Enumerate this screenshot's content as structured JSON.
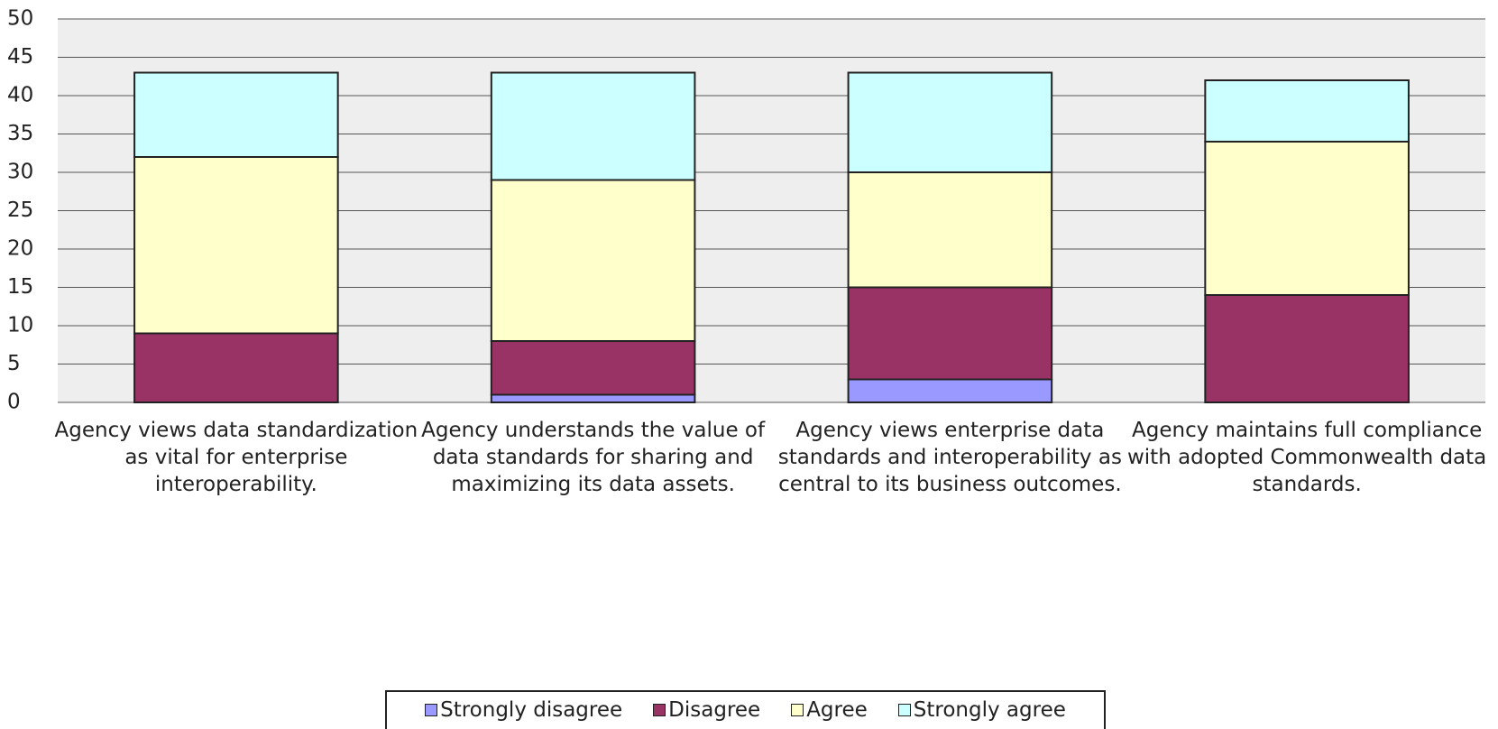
{
  "chart_data": {
    "type": "stacked_bar",
    "categories": [
      "Agency views data standardization as vital for enterprise interoperability.",
      "Agency understands the value of data standards for sharing and maximizing its data assets.",
      "Agency views enterprise data standards and interoperability as central to its business outcomes.",
      "Agency maintains full compliance with adopted Commonwealth data standards."
    ],
    "series": [
      {
        "name": "Strongly disagree",
        "color": "#9999ff",
        "values": [
          0,
          1,
          3,
          0
        ]
      },
      {
        "name": "Disagree",
        "color": "#993366",
        "values": [
          9,
          7,
          12,
          14
        ]
      },
      {
        "name": "Agree",
        "color": "#ffffcc",
        "values": [
          23,
          21,
          15,
          20
        ]
      },
      {
        "name": "Strongly agree",
        "color": "#ccffff",
        "values": [
          11,
          14,
          13,
          8
        ]
      }
    ],
    "ylim": [
      0,
      50
    ],
    "yticks": [
      0,
      5,
      10,
      15,
      20,
      25,
      30,
      35,
      40,
      45,
      50
    ],
    "grid": true,
    "legend": "bottom"
  }
}
